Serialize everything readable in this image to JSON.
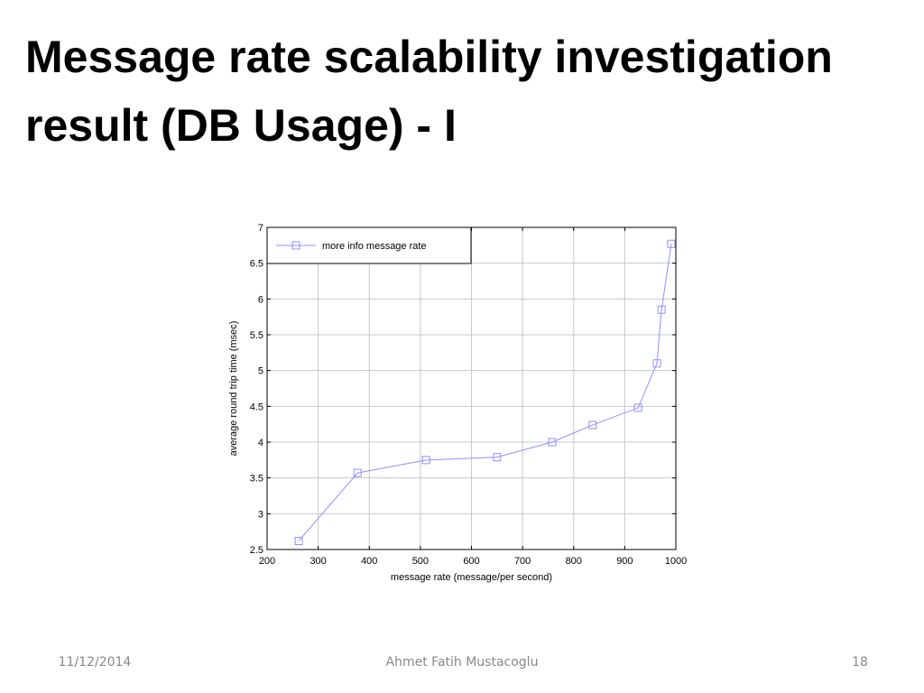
{
  "slide": {
    "title_lines": [
      "Message rate scalability investigation",
      "result (DB Usage) - I"
    ],
    "footer": {
      "date": "11/12/2014",
      "author": "Ahmet Fatih Mustacoglu",
      "page": "18"
    }
  },
  "chart_data": {
    "type": "line",
    "x_label": "message rate (message/per second)",
    "y_label": "average round trip time (msec)",
    "x": [
      262,
      377,
      511,
      650,
      758,
      837,
      926,
      963,
      972,
      991
    ],
    "series": [
      {
        "name": "more info message rate",
        "color": "#8f8fff",
        "marker": "square",
        "values": [
          2.62,
          3.57,
          3.75,
          3.79,
          4.0,
          4.24,
          4.48,
          5.1,
          5.85,
          6.77
        ]
      }
    ],
    "xlim": [
      200,
      1000
    ],
    "xticks": [
      200,
      300,
      400,
      500,
      600,
      700,
      800,
      900,
      1000
    ],
    "ylim": [
      2.5,
      7
    ],
    "yticks": [
      2.5,
      3,
      3.5,
      4,
      4.5,
      5,
      5.5,
      6,
      6.5,
      7
    ],
    "grid": true,
    "legend": "top-left"
  }
}
